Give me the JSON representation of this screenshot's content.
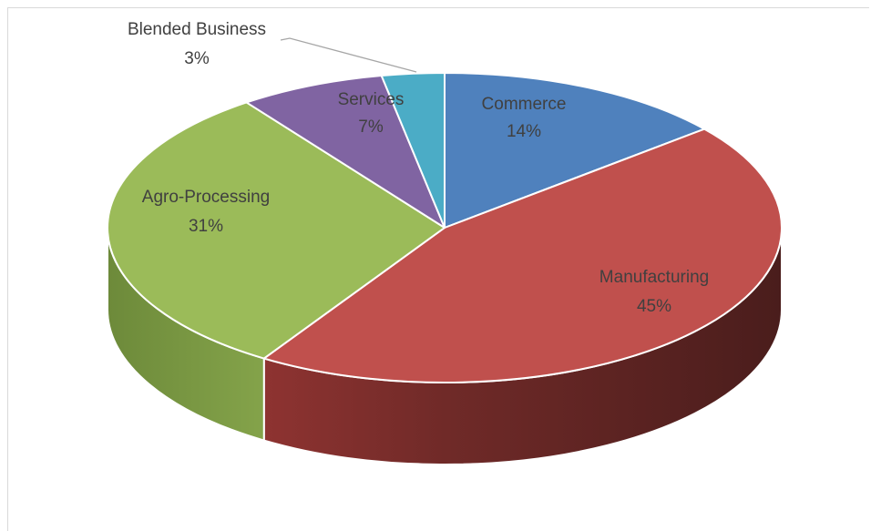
{
  "chart_data": {
    "type": "pie",
    "title": "",
    "style": "3d-pie",
    "slices": [
      {
        "name": "Commerce",
        "value": 14,
        "label": "14%",
        "color": "#4f81bd"
      },
      {
        "name": "Manufacturing",
        "value": 45,
        "label": "45%",
        "color": "#c0504d"
      },
      {
        "name": "Agro-Processing",
        "value": 31,
        "label": "31%",
        "color": "#9bbb59"
      },
      {
        "name": "Services",
        "value": 7,
        "label": "7%",
        "color": "#8064a2"
      },
      {
        "name": "Blended Business",
        "value": 3,
        "label": "3%",
        "color": "#4bacc6"
      }
    ],
    "legend": "none",
    "data_labels": "category and percentage"
  }
}
